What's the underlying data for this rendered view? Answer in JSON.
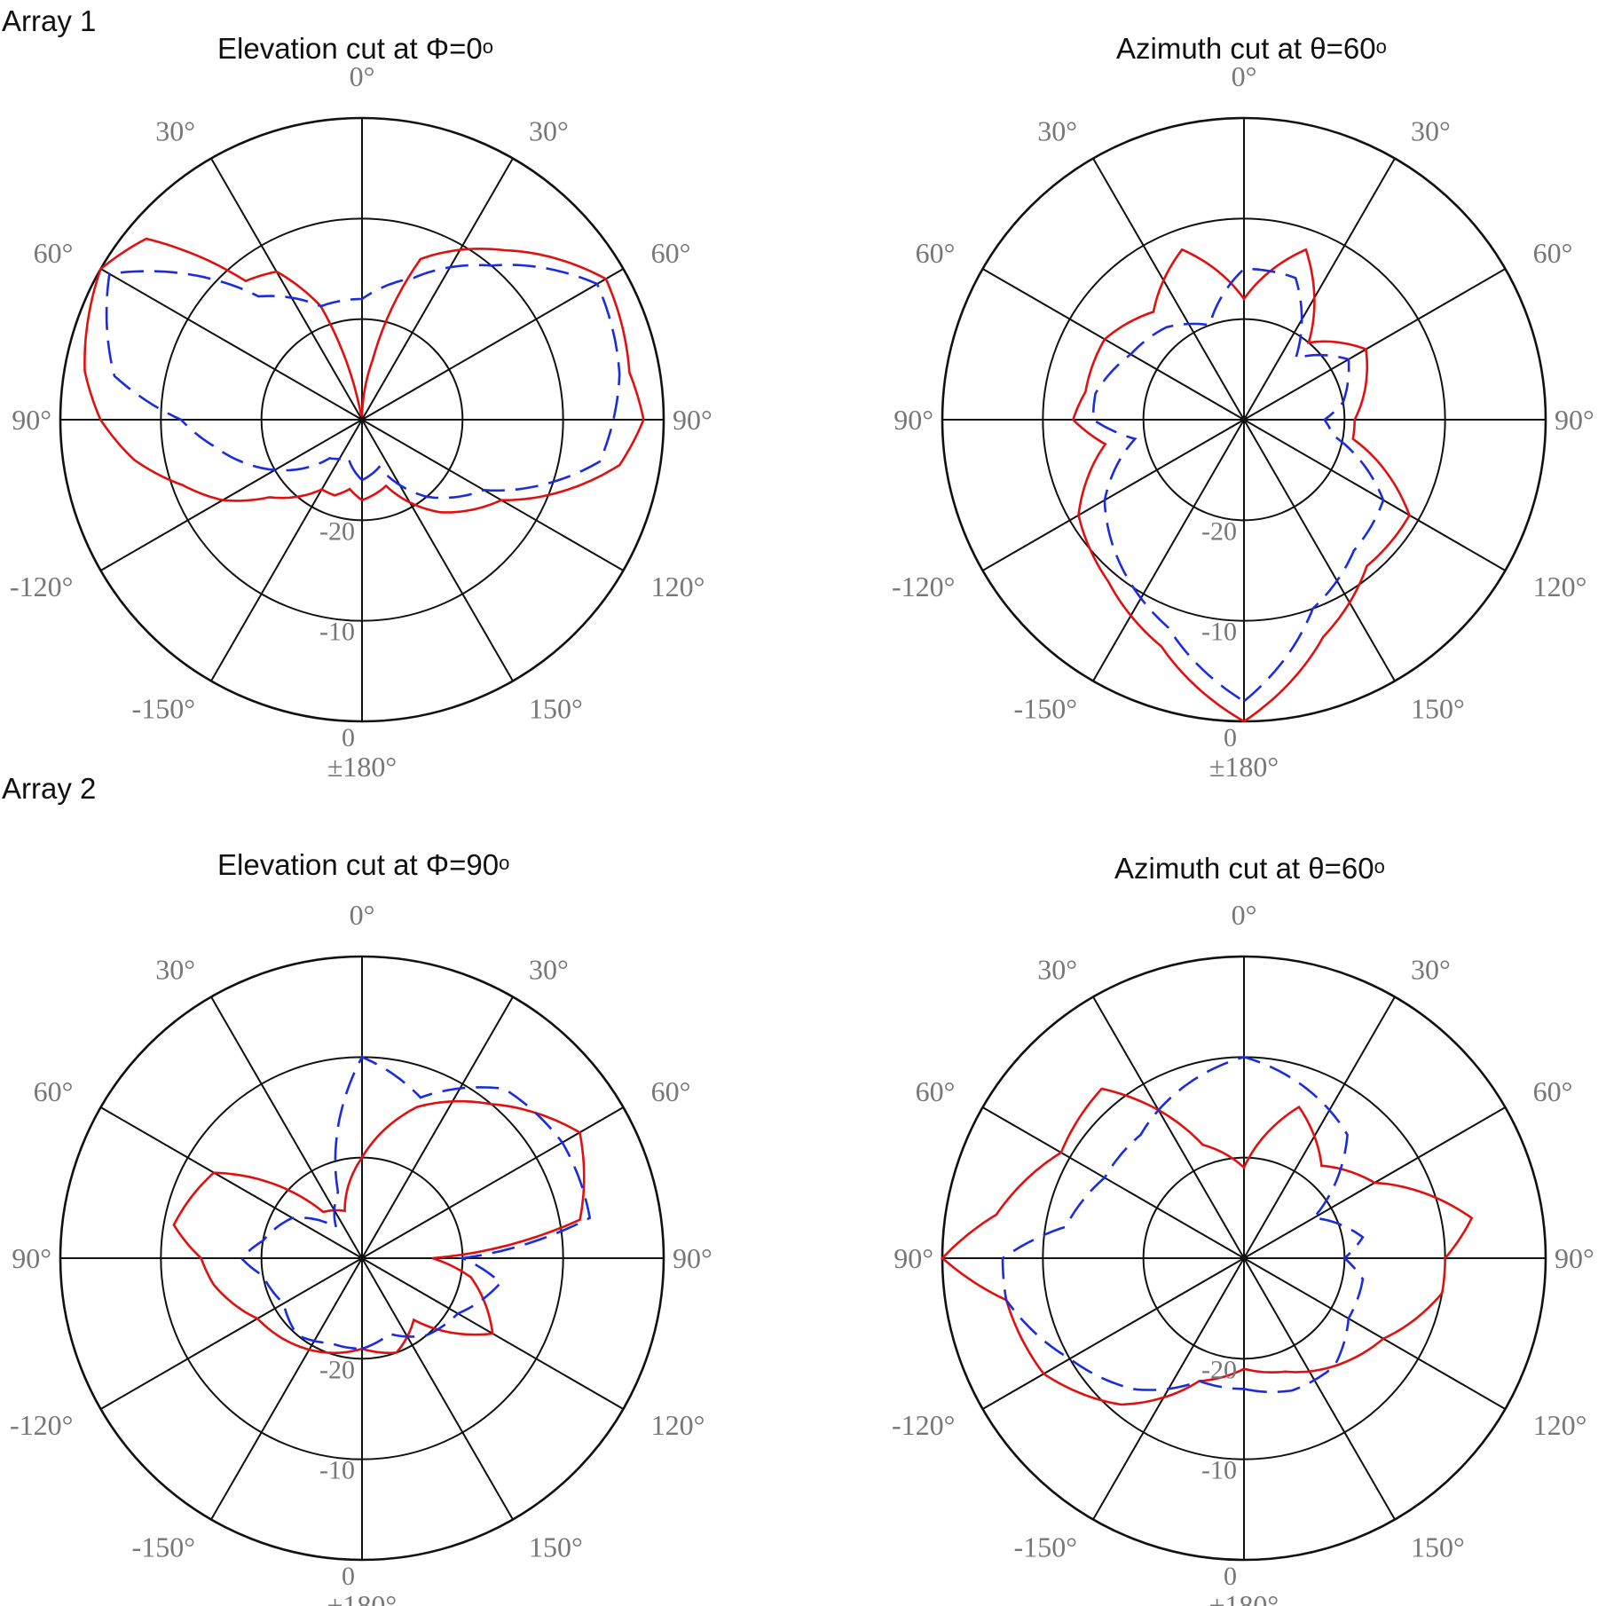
{
  "colors": {
    "series_solid": "#e01010",
    "series_dashed": "#1a2be0",
    "grid": "#111111",
    "tick_text": "#777777"
  },
  "groups": [
    {
      "label": "Array 1"
    },
    {
      "label": "Array 2"
    }
  ],
  "chart_data": [
    {
      "type": "polar",
      "title": "Elevation cut at Φ=0",
      "title_superscript": "o",
      "angle_tick_labels": [
        "0°",
        "30°",
        "60°",
        "90°",
        "120°",
        "150°",
        "±180°",
        "-150°",
        "-120°",
        "90°",
        "60°",
        "30°"
      ],
      "radial_tick_labels": [
        "-20",
        "-10",
        "0"
      ],
      "radial_range": [
        -30,
        0
      ],
      "series": [
        {
          "style": "solid",
          "angles": [
            -180,
            -160,
            -140,
            -120,
            -100,
            -90,
            -80,
            -60,
            -40,
            -20,
            -10,
            0,
            10,
            20,
            30,
            40,
            50,
            60,
            70,
            80,
            90,
            100,
            110,
            120,
            130,
            140,
            150,
            160,
            170,
            180
          ],
          "values": [
            -22,
            -23,
            -18,
            -14,
            -4,
            -2,
            -3,
            -2,
            -8,
            -13,
            -24,
            -30,
            -30,
            -18,
            -13,
            -12,
            -2,
            0,
            -1,
            -2,
            -4,
            -7,
            -11,
            -14,
            -18,
            -20,
            -22,
            -22,
            -23,
            -22
          ]
        },
        {
          "style": "dashed",
          "angles": [
            -180,
            -160,
            -140,
            -120,
            -100,
            -90,
            -80,
            -60,
            -40,
            -20,
            0,
            20,
            40,
            60,
            80,
            90,
            100,
            120,
            140,
            160,
            180
          ],
          "values": [
            -24,
            -25,
            -20,
            -16,
            -6,
            -5,
            -4,
            -3,
            -10,
            -15,
            -18,
            -18,
            -14,
            -1,
            -5,
            -12,
            -15,
            -20,
            -25,
            -26,
            -24
          ]
        }
      ]
    },
    {
      "type": "polar",
      "title": "Azimuth cut at θ=60",
      "title_superscript": "o",
      "angle_tick_labels": [
        "0°",
        "30°",
        "60°",
        "90°",
        "120°",
        "150°",
        "±180°",
        "-150°",
        "-120°",
        "90°",
        "60°",
        "30°"
      ],
      "radial_tick_labels": [
        "-20",
        "-10",
        "0"
      ],
      "radial_range": [
        -30,
        0
      ],
      "series": [
        {
          "style": "solid",
          "angles": [
            -180,
            -160,
            -140,
            -120,
            -100,
            -90,
            -80,
            -60,
            -40,
            -20,
            0,
            20,
            40,
            60,
            80,
            90,
            100,
            120,
            140,
            160,
            180
          ],
          "values": [
            0,
            -7,
            -11,
            -11,
            -19,
            -19,
            -18,
            -16,
            -20,
            -12,
            -18,
            -12,
            -16,
            -14,
            -14,
            -13,
            -16,
            -11,
            -9,
            -6,
            0
          ]
        },
        {
          "style": "dashed",
          "angles": [
            -180,
            -160,
            -140,
            -120,
            -100,
            -90,
            -80,
            -60,
            -40,
            -20,
            0,
            20,
            40,
            60,
            80,
            90,
            100,
            120,
            140,
            160,
            180
          ],
          "values": [
            -2,
            -10,
            -13,
            -14,
            -21,
            -22,
            -20,
            -18,
            -22,
            -15,
            -15,
            -20,
            -18,
            -17,
            -15,
            -15,
            -19,
            -14,
            -11,
            -8,
            -2
          ]
        }
      ]
    },
    {
      "type": "polar",
      "title": "Elevation cut at Φ=90",
      "title_superscript": "o",
      "angle_tick_labels": [
        "0°",
        "30°",
        "60°",
        "90°",
        "120°",
        "150°",
        "±180°",
        "-150°",
        "-120°",
        "90°",
        "60°",
        "30°"
      ],
      "radial_tick_labels": [
        "-20",
        "-10",
        "0"
      ],
      "radial_range": [
        -30,
        0
      ],
      "series": [
        {
          "style": "solid",
          "angles": [
            -180,
            -160,
            -140,
            -120,
            -100,
            -90,
            -80,
            -60,
            -40,
            -20,
            0,
            20,
            40,
            60,
            80,
            90,
            100,
            120,
            140,
            160,
            180
          ],
          "values": [
            -21,
            -20,
            -22,
            -15,
            -19,
            -23,
            -8,
            -5,
            -10,
            -14,
            -20,
            -25,
            -24,
            -13,
            -11,
            -14,
            -15,
            -18,
            -19,
            -20,
            -21
          ]
        },
        {
          "style": "dashed",
          "angles": [
            -180,
            -160,
            -140,
            -120,
            -100,
            -90,
            -80,
            -60,
            -40,
            -20,
            0,
            20,
            40,
            60,
            80,
            90,
            100,
            120,
            140,
            160,
            180
          ],
          "values": [
            -21,
            -22,
            -20,
            -19,
            -16,
            -20,
            -7,
            -7,
            -8,
            -13,
            -10,
            -23,
            -26,
            -22,
            -20,
            -18,
            -20,
            -21,
            -20,
            -21,
            -21
          ]
        }
      ]
    },
    {
      "type": "polar",
      "title": "Azimuth cut at θ=60",
      "title_superscript": "o",
      "angle_tick_labels": [
        "0°",
        "30°",
        "60°",
        "90°",
        "120°",
        "150°",
        "±180°",
        "-150°",
        "-120°",
        "90°",
        "60°",
        "30°"
      ],
      "radial_tick_labels": [
        "-20",
        "-10",
        "0"
      ],
      "radial_range": [
        -30,
        0
      ],
      "series": [
        {
          "style": "solid",
          "angles": [
            -180,
            -160,
            -140,
            -120,
            -100,
            -90,
            -80,
            -60,
            -40,
            -20,
            0,
            20,
            40,
            60,
            80,
            90,
            100,
            120,
            140,
            160,
            180
          ],
          "values": [
            -19,
            -18,
            -16,
            -14,
            -10,
            -10,
            -7,
            -15,
            -18,
            -14,
            -21,
            -18,
            -8,
            -9,
            -5,
            0,
            -6,
            -7,
            -11,
            -17,
            -19
          ]
        },
        {
          "style": "dashed",
          "angles": [
            -180,
            -160,
            -140,
            -120,
            -100,
            -90,
            -80,
            -60,
            -40,
            -20,
            0,
            20,
            40,
            60,
            80,
            90,
            100,
            120,
            140,
            160,
            180
          ],
          "values": [
            -17,
            -16,
            -16,
            -18,
            -18,
            -20,
            -18,
            -22,
            -14,
            -12,
            -10,
            -12,
            -14,
            -14,
            -12,
            -6,
            -6,
            -10,
            -13,
            -17,
            -17
          ]
        }
      ]
    }
  ]
}
